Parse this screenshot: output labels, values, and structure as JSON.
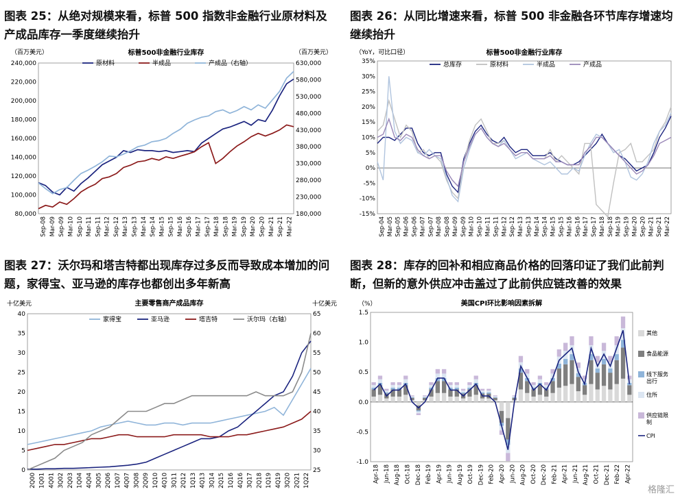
{
  "panels": [
    {
      "title": "图表 25：从绝对规模来看，标普 500 指数非金融行业原材料及产成品库存一季度继续抬升",
      "chart_data": {
        "type": "line",
        "title": "标普500非金融行业库存",
        "unit_left": "（百万美元）",
        "unit_right": "（百万美元）",
        "x_ticks": [
          "Sep-08",
          "Mar-09",
          "Sep-09",
          "Mar-10",
          "Sep-10",
          "Mar-11",
          "Sep-11",
          "Mar-12",
          "Sep-12",
          "Mar-13",
          "Sep-13",
          "Mar-14",
          "Sep-14",
          "Mar-15",
          "Sep-15",
          "Mar-16",
          "Sep-16",
          "Mar-17",
          "Sep-17",
          "Mar-18",
          "Sep-18",
          "Mar-19",
          "Sep-19",
          "Mar-20",
          "Sep-20",
          "Mar-21",
          "Sep-21",
          "Mar-22"
        ],
        "ylim": [
          80000,
          240000
        ],
        "y2lim": [
          180000,
          630000
        ],
        "y_ticks": [
          "80,000",
          "100,000",
          "120,000",
          "140,000",
          "160,000",
          "180,000",
          "200,000",
          "220,000",
          "240,000"
        ],
        "y2_ticks": [
          "180,000",
          "230,000",
          "280,000",
          "330,000",
          "380,000",
          "430,000",
          "480,000",
          "530,000",
          "580,000",
          "630,000"
        ],
        "legend": "top",
        "series": [
          {
            "name": "原材料",
            "color": "#1a237e",
            "axis": "left",
            "values": [
              113000,
              110000,
              103000,
              100000,
              108000,
              104000,
              112000,
              118000,
              125000,
              132000,
              136000,
              140000,
              147000,
              145000,
              148000,
              147000,
              147000,
              146000,
              147000,
              145000,
              146000,
              147000,
              146000,
              155000,
              160000,
              165000,
              170000,
              172000,
              175000,
              178000,
              174000,
              180000,
              178000,
              190000,
              205000,
              218000,
              223000
            ]
          },
          {
            "name": "半成品",
            "color": "#8b1a1a",
            "axis": "right",
            "values": [
              195000,
              205000,
              200000,
              215000,
              208000,
              225000,
              245000,
              258000,
              268000,
              285000,
              290000,
              300000,
              318000,
              325000,
              335000,
              338000,
              345000,
              340000,
              350000,
              345000,
              352000,
              358000,
              365000,
              380000,
              392000,
              330000,
              345000,
              365000,
              382000,
              395000,
              410000,
              420000,
              412000,
              420000,
              430000,
              445000,
              440000
            ]
          },
          {
            "name": "产成品（右轴）",
            "color": "#8fb4d9",
            "axis": "right",
            "values": [
              272000,
              255000,
              240000,
              252000,
              258000,
              280000,
              300000,
              310000,
              322000,
              335000,
              352000,
              350000,
              358000,
              368000,
              380000,
              385000,
              395000,
              398000,
              405000,
              420000,
              432000,
              450000,
              460000,
              468000,
              472000,
              485000,
              490000,
              480000,
              488000,
              500000,
              490000,
              505000,
              495000,
              520000,
              545000,
              585000,
              605000
            ]
          }
        ]
      }
    },
    {
      "title": "图表 26：从同比增速来看，标普 500 非金融各环节库存增速均继续抬升",
      "chart_data": {
        "type": "line",
        "title": "标普500非金融行业库存",
        "unit_left": "（YoY，可比口径）",
        "x_ticks": [
          "Sep-04",
          "Mar-05",
          "Sep-05",
          "Mar-06",
          "Sep-06",
          "Mar-07",
          "Sep-07",
          "Mar-08",
          "Sep-08",
          "Mar-09",
          "Sep-09",
          "Mar-10",
          "Sep-10",
          "Mar-11",
          "Sep-11",
          "Mar-12",
          "Sep-12",
          "Mar-13",
          "Sep-13",
          "Mar-14",
          "Sep-14",
          "Mar-15",
          "Sep-15",
          "Mar-16",
          "Sep-16",
          "Mar-17",
          "Sep-17",
          "Mar-18",
          "Sep-18",
          "Mar-19",
          "Sep-19",
          "Mar-20",
          "Sep-20",
          "Mar-21",
          "Sep-21",
          "Mar-22"
        ],
        "ylim": [
          -15,
          35
        ],
        "y_ticks": [
          "-15%",
          "-10%",
          "-5%",
          "0%",
          "5%",
          "10%",
          "15%",
          "20%",
          "25%",
          "30%",
          "35%"
        ],
        "legend": "top",
        "series": [
          {
            "name": "总库存",
            "color": "#1a237e",
            "values": [
              8,
              10,
              10,
              9,
              11,
              13,
              13,
              8,
              5,
              4,
              5,
              5,
              -2,
              -6,
              -8,
              3,
              8,
              12,
              14,
              11,
              9,
              8,
              10,
              7,
              5,
              6,
              6,
              4,
              4,
              4,
              5,
              3,
              2,
              1,
              1,
              2,
              4,
              6,
              8,
              11,
              8,
              6,
              4,
              3,
              1,
              -1,
              0,
              1,
              5,
              10,
              13,
              17
            ]
          },
          {
            "name": "原材料",
            "color": "#c0c0c0",
            "values": [
              12,
              14,
              22,
              16,
              10,
              14,
              12,
              5,
              6,
              3,
              4,
              2,
              -4,
              -8,
              -10,
              2,
              9,
              14,
              16,
              12,
              8,
              8,
              9,
              6,
              4,
              5,
              5,
              3,
              3,
              3,
              6,
              2,
              4,
              2,
              0,
              -2,
              8,
              8,
              -12,
              -14,
              -16,
              -5,
              5,
              6,
              8,
              2,
              2,
              4,
              6,
              12,
              15,
              20
            ]
          },
          {
            "name": "半成品",
            "color": "#b0c4de",
            "values": [
              2,
              -4,
              30,
              12,
              8,
              10,
              9,
              5,
              4,
              6,
              4,
              3,
              -3,
              -9,
              -11,
              0,
              6,
              11,
              13,
              10,
              8,
              7,
              9,
              6,
              3,
              4,
              5,
              3,
              2,
              1,
              2,
              0,
              -2,
              -2,
              0,
              -1,
              4,
              8,
              11,
              10,
              8,
              5,
              6,
              2,
              -3,
              -4,
              -2,
              2,
              8,
              12,
              14,
              18
            ]
          },
          {
            "name": "产成品",
            "color": "#9a88b8",
            "values": [
              10,
              11,
              16,
              10,
              9,
              11,
              10,
              6,
              4,
              3,
              4,
              4,
              -1,
              -4,
              -6,
              2,
              7,
              11,
              13,
              10,
              8,
              7,
              8,
              6,
              4,
              5,
              5,
              3,
              3,
              3,
              4,
              2,
              2,
              1,
              1,
              1,
              5,
              7,
              10,
              10,
              8,
              6,
              4,
              2,
              0,
              -2,
              -1,
              1,
              4,
              8,
              9,
              10
            ]
          }
        ]
      }
    },
    {
      "title": "图表 27：沃尔玛和塔吉特都出现库存过多反而导致成本增加的问题，家得宝、亚马逊的库存也都创出多年新高",
      "chart_data": {
        "type": "line",
        "title": "主要零售商产成品库存",
        "unit_left": "十亿美元",
        "unit_right": "十亿美元",
        "x_ticks": [
          "2Q00",
          "1Q01",
          "4Q01",
          "3Q02",
          "2Q03",
          "1Q04",
          "4Q04",
          "3Q05",
          "2Q06",
          "1Q07",
          "4Q07",
          "3Q08",
          "2Q09",
          "1Q10",
          "4Q10",
          "3Q11",
          "2Q12",
          "1Q13",
          "4Q13",
          "3Q14",
          "2Q15",
          "1Q16",
          "4Q16",
          "3Q17",
          "2Q18",
          "1Q19",
          "4Q19",
          "3Q20",
          "2Q21",
          "1Q22"
        ],
        "ylim": [
          0,
          40
        ],
        "y2lim": [
          25,
          65
        ],
        "y_ticks": [
          "0",
          "5",
          "10",
          "15",
          "20",
          "25",
          "30",
          "35",
          "40"
        ],
        "y2_ticks": [
          "25",
          "30",
          "35",
          "40",
          "45",
          "50",
          "55",
          "60",
          "65"
        ],
        "legend": "top",
        "series": [
          {
            "name": "家得宝",
            "color": "#8fb4d9",
            "axis": "left",
            "values": [
              6.5,
              7,
              7.5,
              8,
              8.5,
              9,
              9.5,
              10,
              11,
              11.5,
              12,
              12.5,
              12,
              11.5,
              11.5,
              12,
              12,
              11.5,
              12,
              12,
              12,
              12.5,
              13,
              13.5,
              14,
              14.5,
              15,
              16,
              14,
              18,
              22,
              26
            ]
          },
          {
            "name": "亚马逊",
            "color": "#1a237e",
            "axis": "left",
            "values": [
              0.2,
              0.2,
              0.3,
              0.3,
              0.4,
              0.4,
              0.5,
              0.6,
              0.7,
              0.8,
              1,
              1.2,
              1.5,
              2,
              3,
              4,
              5,
              6,
              7,
              8,
              8,
              8.5,
              10,
              11,
              13,
              15,
              17,
              19,
              20,
              24,
              30,
              33
            ]
          },
          {
            "name": "塔吉特",
            "color": "#8b1a1a",
            "axis": "left",
            "values": [
              5,
              5.5,
              6,
              6.5,
              6.5,
              7,
              7.5,
              8,
              8,
              8.5,
              9,
              9,
              8.5,
              8.5,
              8.5,
              8.5,
              9,
              9,
              9,
              9,
              8.5,
              8.5,
              8.5,
              9,
              9,
              9.5,
              10,
              10.5,
              11,
              12,
              13,
              15
            ]
          },
          {
            "name": "沃尔玛（右轴）",
            "color": "#8a8a8a",
            "axis": "right",
            "values": [
              25,
              26,
              27,
              28,
              30,
              31,
              32,
              34,
              35,
              36,
              38,
              40,
              40,
              40,
              41,
              42,
              42,
              43,
              44,
              44,
              44,
              44,
              44,
              44,
              44,
              45,
              44,
              44,
              44,
              45,
              50,
              60
            ]
          }
        ]
      }
    },
    {
      "title": "图表 28：库存的回补和相应商品价格的回落印证了我们此前判断，但新的意外供应冲击盖过了此前供应链改善的效果",
      "chart_data": {
        "type": "bar",
        "title": "美国CPI环比影响因素拆解",
        "unit_left": "（%）",
        "x_ticks": [
          "Apr-18",
          "Jun-18",
          "Aug-18",
          "Oct-18",
          "Dec-18",
          "Feb-19",
          "Apr-19",
          "Jun-19",
          "Aug-19",
          "Oct-19",
          "Dec-19",
          "Feb-20",
          "Apr-20",
          "Jun-20",
          "Aug-20",
          "Oct-20",
          "Dec-20",
          "Feb-21",
          "Apr-21",
          "Jun-21",
          "Aug-21",
          "Oct-21",
          "Dec-21",
          "Feb-22",
          "Apr-22"
        ],
        "ylim": [
          -1.0,
          1.5
        ],
        "y_ticks": [
          "-1.0",
          "-0.5",
          "0.0",
          "0.5",
          "1.0",
          "1.5"
        ],
        "legend": "right",
        "series": [
          {
            "name": "其他",
            "color": "#d9d9d9"
          },
          {
            "name": "食品能源",
            "color": "#7f7f7f"
          },
          {
            "name": "线下服务出行",
            "color": "#8fb4d9"
          },
          {
            "name": "住所",
            "color": "#dce6f2"
          },
          {
            "name": "供应链限制",
            "color": "#c9b8d9"
          },
          {
            "name": "CPI",
            "color": "#1a237e",
            "values": [
              0.2,
              0.3,
              0.1,
              0.2,
              0.2,
              0.3,
              0.0,
              -0.1,
              0.0,
              0.2,
              0.4,
              0.4,
              0.2,
              0.2,
              0.1,
              0.2,
              0.3,
              0.1,
              0.1,
              0.0,
              -0.4,
              -0.8,
              0.0,
              0.6,
              0.4,
              0.2,
              0.3,
              0.2,
              0.4,
              0.7,
              0.8,
              0.9,
              0.5,
              0.3,
              0.9,
              0.6,
              0.8,
              0.6,
              0.9,
              1.2,
              0.3
            ]
          }
        ]
      }
    }
  ],
  "watermark": "格隆汇"
}
